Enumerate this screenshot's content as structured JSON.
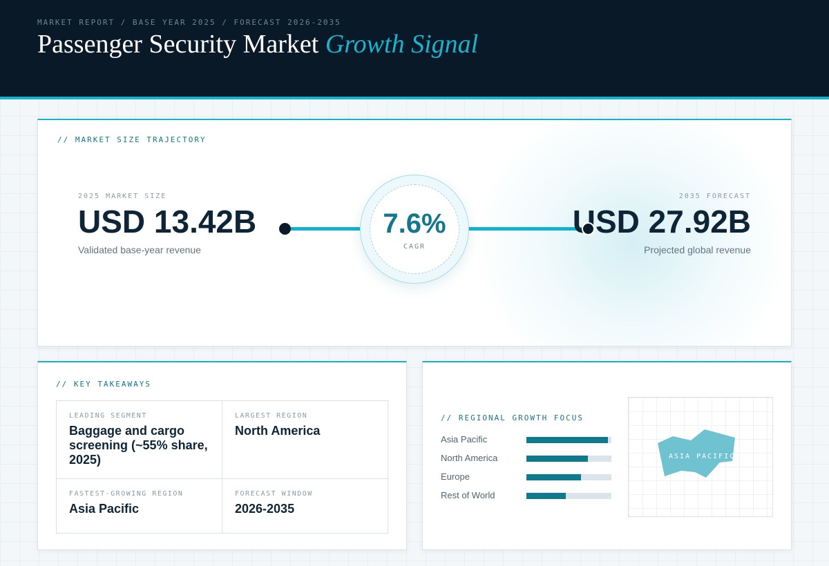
{
  "header": {
    "eyebrow": "MARKET REPORT / BASE YEAR 2025 / FORECAST 2026-2035",
    "title_main": "Passenger Security Market",
    "title_accent": "Growth Signal"
  },
  "trajectory": {
    "label": "// MARKET SIZE TRAJECTORY",
    "base": {
      "label": "2025 MARKET SIZE",
      "value": "USD 13.42B",
      "desc": "Validated base-year revenue"
    },
    "forecast": {
      "label": "2035 FORECAST",
      "value": "USD 27.92B",
      "desc": "Projected global revenue"
    },
    "cagr": {
      "value": "7.6%",
      "label": "CAGR"
    }
  },
  "takeaways": {
    "label": "// KEY TAKEAWAYS",
    "items": [
      {
        "key": "LEADING SEGMENT",
        "value": "Baggage and cargo screening (~55% share, 2025)"
      },
      {
        "key": "LARGEST REGION",
        "value": "North America"
      },
      {
        "key": "FASTEST-GROWING REGION",
        "value": "Asia Pacific"
      },
      {
        "key": "FORECAST WINDOW",
        "value": "2026-2035"
      }
    ]
  },
  "regional": {
    "label": "// REGIONAL GROWTH FOCUS",
    "bars": [
      {
        "name": "Asia Pacific",
        "level": 0.96
      },
      {
        "name": "North America",
        "level": 0.72
      },
      {
        "name": "Europe",
        "level": 0.64
      },
      {
        "name": "Rest of World",
        "level": 0.46
      }
    ],
    "map_label": "ASIA PACIFIC",
    "colors": {
      "bar_fill": "#0f7a8e",
      "bar_track": "#dbe4ea",
      "map_shape": "#6fc3d1"
    }
  },
  "colors": {
    "accent": "#11b3cf",
    "header_bg": "#0a1927",
    "ink": "#0d2537"
  }
}
